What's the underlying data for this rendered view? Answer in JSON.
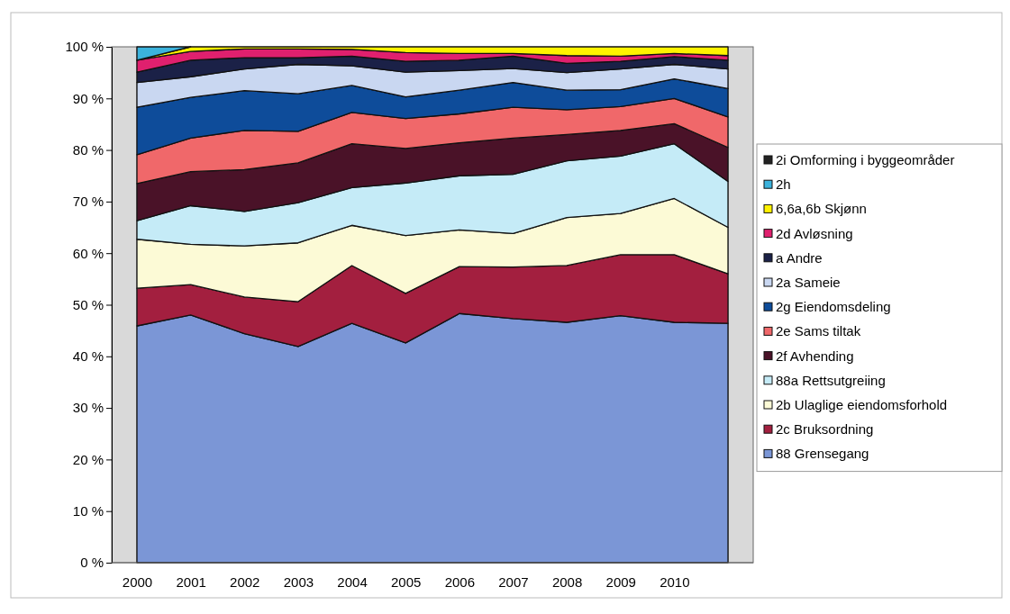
{
  "chart_data": {
    "type": "area",
    "stacked": true,
    "legend": "right",
    "grid": false,
    "categories": [
      "2000",
      "2001",
      "2002",
      "2003",
      "2004",
      "2005",
      "2006",
      "2007",
      "2008",
      "2009",
      "2010",
      null
    ],
    "ylim": [
      0,
      100
    ],
    "yticks": [
      {
        "value": 0,
        "label": "0 %"
      },
      {
        "value": 10,
        "label": "10 %"
      },
      {
        "value": 20,
        "label": "20 %"
      },
      {
        "value": 30,
        "label": "30 %"
      },
      {
        "value": 40,
        "label": "40 %"
      },
      {
        "value": 50,
        "label": "50 %"
      },
      {
        "value": 60,
        "label": "60 %"
      },
      {
        "value": 70,
        "label": "70 %"
      },
      {
        "value": 80,
        "label": "80 %"
      },
      {
        "value": 90,
        "label": "90 %"
      },
      {
        "value": 100,
        "label": "100 %"
      }
    ],
    "series": [
      {
        "name": "88 Grensegang",
        "color": "#7b96d6",
        "values": [
          45.9,
          48.0,
          44.4,
          41.9,
          46.4,
          42.6,
          48.3,
          47.3,
          46.6,
          47.9,
          46.6,
          46.4
        ]
      },
      {
        "name": "2c Bruksordning",
        "color": "#a31f3f",
        "values": [
          7.3,
          5.9,
          7.1,
          8.7,
          11.2,
          9.6,
          9.1,
          10.0,
          11.0,
          11.8,
          13.1,
          9.6
        ]
      },
      {
        "name": "2b Ulaglige eiendomsforhold",
        "color": "#fcfad6",
        "values": [
          9.5,
          7.8,
          9.9,
          11.4,
          7.8,
          11.2,
          7.1,
          6.5,
          9.3,
          8.0,
          10.9,
          9.0
        ]
      },
      {
        "name": "88a Rettsutgreiing",
        "color": "#c5ebf7",
        "values": [
          3.6,
          7.5,
          6.7,
          7.8,
          7.3,
          10.2,
          10.5,
          11.5,
          11.0,
          11.1,
          10.6,
          8.9
        ]
      },
      {
        "name": "2f Avhending",
        "color": "#4a1228",
        "values": [
          7.2,
          6.6,
          8.1,
          7.7,
          8.5,
          6.7,
          6.4,
          7.0,
          5.1,
          5.0,
          3.9,
          6.6
        ]
      },
      {
        "name": "2e Sams tiltak",
        "color": "#f0686a",
        "values": [
          5.6,
          6.5,
          7.6,
          6.1,
          6.1,
          5.8,
          5.6,
          6.0,
          4.8,
          4.6,
          4.9,
          5.9
        ]
      },
      {
        "name": "2g Eiendomsdeling",
        "color": "#0e4c9a",
        "values": [
          9.2,
          7.9,
          7.7,
          7.3,
          5.2,
          4.2,
          4.6,
          4.8,
          3.8,
          3.3,
          3.8,
          5.5
        ]
      },
      {
        "name": "2a Sameie",
        "color": "#c9d7f1",
        "values": [
          4.8,
          4.0,
          4.2,
          5.7,
          3.8,
          4.8,
          3.8,
          2.7,
          3.4,
          4.0,
          2.8,
          3.8
        ]
      },
      {
        "name": "a Andre",
        "color": "#1b2147",
        "values": [
          2.0,
          3.2,
          2.2,
          1.3,
          1.9,
          2.1,
          2.0,
          2.4,
          1.8,
          1.5,
          1.5,
          1.7
        ]
      },
      {
        "name": "2d Avløsning",
        "color": "#e0206e",
        "values": [
          2.3,
          1.7,
          1.7,
          1.7,
          1.3,
          1.7,
          1.3,
          0.5,
          1.5,
          1.0,
          0.6,
          0.9
        ]
      },
      {
        "name": "6,6a,6b Skjønn",
        "color": "#fff200",
        "values": [
          0,
          0.9,
          0.4,
          0.4,
          0.5,
          1.1,
          1.3,
          1.3,
          1.7,
          1.8,
          1.3,
          1.7
        ]
      },
      {
        "name": "2h",
        "color": "#3bb2dc",
        "values": [
          2.6,
          0,
          null,
          null,
          null,
          null,
          null,
          null,
          null,
          null,
          null,
          null
        ]
      },
      {
        "name": "2i Omforming i byggeområder",
        "color": "#222222",
        "values": [
          null,
          null,
          null,
          null,
          null,
          null,
          null,
          null,
          null,
          null,
          null,
          null
        ]
      }
    ]
  }
}
